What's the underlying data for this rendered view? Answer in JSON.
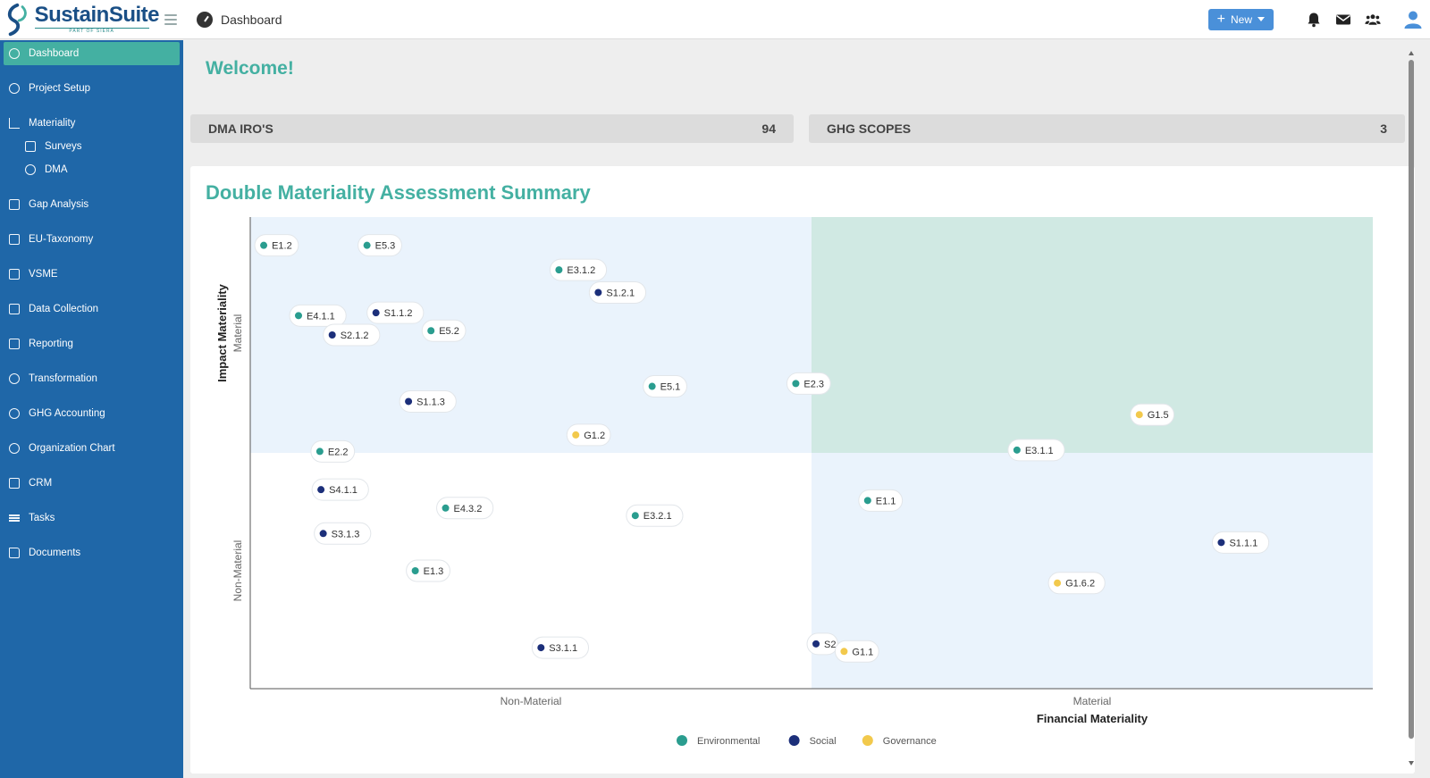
{
  "app": {
    "logo_name": "SustainSuite",
    "logo_sub": "PART OF SIERA",
    "page_title": "Dashboard",
    "new_button": "New"
  },
  "top_icons": [
    "bell-icon",
    "mail-icon",
    "users-icon",
    "user-icon"
  ],
  "sidebar": {
    "items": [
      {
        "label": "Dashboard",
        "icon": "dashboard-icon",
        "level": 0,
        "active": true
      },
      {
        "label": "Project Setup",
        "icon": "project-setup-icon",
        "level": 0
      },
      {
        "label": "Materiality",
        "icon": "chart-line-icon",
        "level": 0
      },
      {
        "label": "Surveys",
        "icon": "survey-icon",
        "level": 1
      },
      {
        "label": "DMA",
        "icon": "globe-icon",
        "level": 1
      },
      {
        "label": "Gap Analysis",
        "icon": "database-icon",
        "level": 0
      },
      {
        "label": "EU-Taxonomy",
        "icon": "document-icon",
        "level": 0
      },
      {
        "label": "VSME",
        "icon": "database-icon",
        "level": 0
      },
      {
        "label": "Data Collection",
        "icon": "database-icon",
        "level": 0
      },
      {
        "label": "Reporting",
        "icon": "report-icon",
        "level": 0
      },
      {
        "label": "Transformation",
        "icon": "refresh-icon",
        "level": 0
      },
      {
        "label": "GHG Accounting",
        "icon": "leaf-icon",
        "level": 0
      },
      {
        "label": "Organization Chart",
        "icon": "refresh-icon",
        "level": 0
      },
      {
        "label": "CRM",
        "icon": "contact-icon",
        "level": 0
      },
      {
        "label": "Tasks",
        "icon": "list-icon",
        "level": 0
      },
      {
        "label": "Documents",
        "icon": "folder-icon",
        "level": 0
      }
    ]
  },
  "welcome": "Welcome!",
  "kpis": [
    {
      "label": "DMA IRO'S",
      "value": "94"
    },
    {
      "label": "GHG SCOPES",
      "value": "3"
    }
  ],
  "colors": {
    "accent": "#44b0a2",
    "sidebar": "#1f67a8",
    "environmental": "#2a9d8f",
    "social": "#1c2f7a",
    "governance": "#f2c94c",
    "quadrant_light": "#eaf3fc",
    "quadrant_material": "#d0e9e3"
  },
  "chart_data": {
    "type": "scatter",
    "title": "Double Materiality Assessment Summary",
    "xlabel": "Financial Materiality",
    "ylabel": "Impact Materiality",
    "x_categories": [
      "Non-Material",
      "Material"
    ],
    "y_categories": [
      "Non-Material",
      "Material"
    ],
    "xlim": [
      0,
      1
    ],
    "ylim": [
      0,
      1
    ],
    "threshold": 0.5,
    "grid": false,
    "legend": "bottom",
    "series": [
      {
        "name": "Environmental",
        "points": [
          {
            "label": "E1.2",
            "x": 0.012,
            "y": 0.94
          },
          {
            "label": "E5.3",
            "x": 0.104,
            "y": 0.94
          },
          {
            "label": "E3.1.2",
            "x": 0.275,
            "y": 0.888
          },
          {
            "label": "E4.1.1",
            "x": 0.043,
            "y": 0.791
          },
          {
            "label": "E5.2",
            "x": 0.161,
            "y": 0.759
          },
          {
            "label": "E5.1",
            "x": 0.358,
            "y": 0.641
          },
          {
            "label": "E2.3",
            "x": 0.486,
            "y": 0.647
          },
          {
            "label": "E2.2",
            "x": 0.062,
            "y": 0.503
          },
          {
            "label": "E3.1.1",
            "x": 0.683,
            "y": 0.506
          },
          {
            "label": "E4.3.2",
            "x": 0.174,
            "y": 0.383
          },
          {
            "label": "E3.2.1",
            "x": 0.343,
            "y": 0.367
          },
          {
            "label": "E1.1",
            "x": 0.55,
            "y": 0.399
          },
          {
            "label": "E1.3",
            "x": 0.147,
            "y": 0.25
          }
        ]
      },
      {
        "name": "Social",
        "points": [
          {
            "label": "S1.2.1",
            "x": 0.31,
            "y": 0.84
          },
          {
            "label": "S1.1.2",
            "x": 0.112,
            "y": 0.797
          },
          {
            "label": "S2.1.2",
            "x": 0.073,
            "y": 0.75
          },
          {
            "label": "S1.1.3",
            "x": 0.141,
            "y": 0.609
          },
          {
            "label": "S4.1.1",
            "x": 0.063,
            "y": 0.422
          },
          {
            "label": "S3.1.3",
            "x": 0.065,
            "y": 0.329
          },
          {
            "label": "S1.1.1",
            "x": 0.865,
            "y": 0.31
          },
          {
            "label": "S3.1.1",
            "x": 0.259,
            "y": 0.087
          },
          {
            "label": "S2",
            "x": 0.504,
            "y": 0.095
          }
        ]
      },
      {
        "name": "Governance",
        "points": [
          {
            "label": "G1.2",
            "x": 0.29,
            "y": 0.538
          },
          {
            "label": "G1.5",
            "x": 0.792,
            "y": 0.581
          },
          {
            "label": "G1.6.2",
            "x": 0.719,
            "y": 0.224
          },
          {
            "label": "G1.1",
            "x": 0.529,
            "y": 0.079
          }
        ]
      }
    ]
  }
}
